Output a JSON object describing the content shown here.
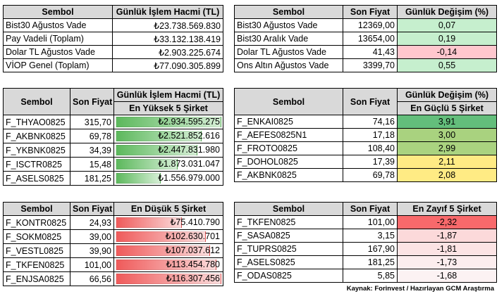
{
  "t1": {
    "headers": [
      "Sembol",
      "Günlük İşlem Hacmi (TL)"
    ],
    "rows": [
      {
        "sym": "Bist30 Ağustos Vade",
        "val": "₺23.738.569.830"
      },
      {
        "sym": "Pay Vadeli (Toplam)",
        "val": "₺33.132.138.419"
      },
      {
        "sym": "Dolar TL Ağustos Vade",
        "val": "₺2.903.225.674"
      },
      {
        "sym": "VİOP Genel (Toplam)",
        "val": "₺77.090.305.899"
      }
    ]
  },
  "t2": {
    "headers": [
      "Sembol",
      "Son Fiyat",
      "Günlük Değişim (%)"
    ],
    "rows": [
      {
        "sym": "Bist30 Ağustos Vade",
        "price": "12369,00",
        "chg": "0,07",
        "bg": "#c6efce"
      },
      {
        "sym": "Bist30 Aralık Vade",
        "price": "13654,00",
        "chg": "0,19",
        "bg": "#c6efce"
      },
      {
        "sym": "Dolar TL Ağustos Vade",
        "price": "41,43",
        "chg": "-0,14",
        "bg": "#ffc7ce"
      },
      {
        "sym": "Ons Altın Ağustos Vade",
        "price": "3399,70",
        "chg": "0,55",
        "bg": "#c6efce"
      }
    ]
  },
  "t3": {
    "headers": [
      "Sembol",
      "Son Fiyat",
      "Günlük İşlem Hacmi (TL)"
    ],
    "subheader": "En Yüksek 5 Şirket",
    "rows": [
      {
        "sym": "F_THYAO0825",
        "price": "315,70",
        "vol": "₺2.934.595.275",
        "fill": 1.0
      },
      {
        "sym": "F_AKBNK0825",
        "price": "69,78",
        "vol": "₺2.521.852.616",
        "fill": 0.81
      },
      {
        "sym": "F_YKBNK0825",
        "price": "34,39",
        "vol": "₺2.447.831.980",
        "fill": 0.77
      },
      {
        "sym": "F_ISCTR0825",
        "price": "15,48",
        "vol": "₺1.873.031.047",
        "fill": 0.58
      },
      {
        "sym": "F_ASELS0825",
        "price": "181,25",
        "vol": "₺1.556.979.000",
        "fill": 0.42
      }
    ]
  },
  "t4": {
    "headers": [
      "Sembol",
      "Son Fiyat",
      "Günlük Değişim (%)"
    ],
    "subheader": "En Güçlü 5 Şirket",
    "rows": [
      {
        "sym": "F_ENKAI0825",
        "price": "74,16",
        "chg": "3,91",
        "bg": "#63be7b"
      },
      {
        "sym": "F_AEFES0825N1",
        "price": "17,18",
        "chg": "3,00",
        "bg": "#a9d27f"
      },
      {
        "sym": "F_FROTO0825",
        "price": "108,40",
        "chg": "2,99",
        "bg": "#aad380"
      },
      {
        "sym": "F_DOHOL0825",
        "price": "17,39",
        "chg": "2,11",
        "bg": "#ffeb84"
      },
      {
        "sym": "F_AKBNK0825",
        "price": "69,78",
        "chg": "2,08",
        "bg": "#ffeb84"
      }
    ]
  },
  "t5": {
    "headers": [
      "Sembol",
      "Son Fiyat",
      "En Düşük 5 Şirket"
    ],
    "rows": [
      {
        "sym": "F_KONTR0825",
        "price": "24,93",
        "vol": "₺75.410.790",
        "fill": 0.62
      },
      {
        "sym": "F_SOKM0825",
        "price": "39,00",
        "vol": "₺102.630.701",
        "fill": 0.85
      },
      {
        "sym": "F_VESTL0825",
        "price": "39,90",
        "vol": "₺107.037.612",
        "fill": 0.89
      },
      {
        "sym": "F_TKFEN0825",
        "price": "101,00",
        "vol": "₺113.454.780",
        "fill": 0.95
      },
      {
        "sym": "F_ENJSA0825",
        "price": "66,56",
        "vol": "₺116.307.456",
        "fill": 1.0
      }
    ]
  },
  "t6": {
    "headers": [
      "Sembol",
      "Son Fiyat",
      "En Zayıf 5 Şirket"
    ],
    "rows": [
      {
        "sym": "F_TKFEN0825",
        "price": "101,00",
        "chg": "-2,32",
        "bg": "#f8696b"
      },
      {
        "sym": "F_SASA0825",
        "price": "3,15",
        "chg": "-1,87",
        "bg": "#fcd9da"
      },
      {
        "sym": "F_TUPRS0825",
        "price": "167,90",
        "chg": "-1,81",
        "bg": "#fce3e4"
      },
      {
        "sym": "F_ASELS0825",
        "price": "181,25",
        "chg": "-1,73",
        "bg": "#fcedee"
      },
      {
        "sym": "F_ODAS0825",
        "price": "5,85",
        "chg": "-1,68",
        "bg": "#fcf2f3"
      }
    ]
  },
  "source": "Kaynak: Forinvest / Hazırlayan GCM Araştırma"
}
